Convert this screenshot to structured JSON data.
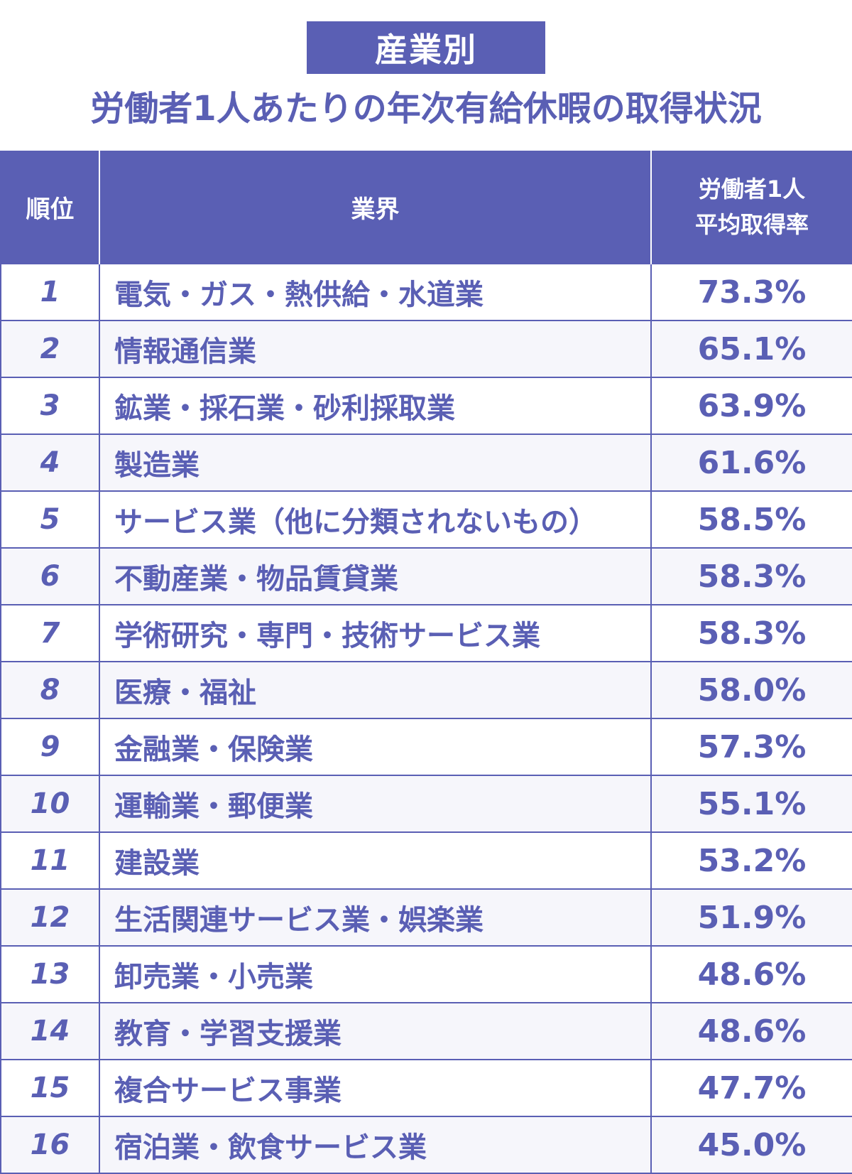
{
  "badge": "産業別",
  "title": "労働者1人あたりの年次有給休暇の取得状況",
  "header": {
    "rank": "順位",
    "industry": "業界",
    "rate_line1": "労働者1人",
    "rate_line2": "平均取得率"
  },
  "chart_data": {
    "type": "table",
    "title": "労働者1人あたりの年次有給休暇の取得状況",
    "columns": [
      "順位",
      "業界",
      "労働者1人 平均取得率"
    ],
    "rows": [
      {
        "rank": "1",
        "industry": "電気・ガス・熱供給・水道業",
        "rate": "73.3%",
        "value": 73.3
      },
      {
        "rank": "2",
        "industry": "情報通信業",
        "rate": "65.1%",
        "value": 65.1
      },
      {
        "rank": "3",
        "industry": "鉱業・採石業・砂利採取業",
        "rate": "63.9%",
        "value": 63.9
      },
      {
        "rank": "4",
        "industry": "製造業",
        "rate": "61.6%",
        "value": 61.6
      },
      {
        "rank": "5",
        "industry": "サービス業（他に分類されないもの）",
        "rate": "58.5%",
        "value": 58.5
      },
      {
        "rank": "6",
        "industry": "不動産業・物品賃貸業",
        "rate": "58.3%",
        "value": 58.3
      },
      {
        "rank": "7",
        "industry": "学術研究・専門・技術サービス業",
        "rate": "58.3%",
        "value": 58.3
      },
      {
        "rank": "8",
        "industry": "医療・福祉",
        "rate": "58.0%",
        "value": 58.0
      },
      {
        "rank": "9",
        "industry": "金融業・保険業",
        "rate": "57.3%",
        "value": 57.3
      },
      {
        "rank": "10",
        "industry": "運輸業・郵便業",
        "rate": "55.1%",
        "value": 55.1
      },
      {
        "rank": "11",
        "industry": "建設業",
        "rate": "53.2%",
        "value": 53.2
      },
      {
        "rank": "12",
        "industry": "生活関連サービス業・娯楽業",
        "rate": "51.9%",
        "value": 51.9
      },
      {
        "rank": "13",
        "industry": "卸売業・小売業",
        "rate": "48.6%",
        "value": 48.6
      },
      {
        "rank": "14",
        "industry": "教育・学習支援業",
        "rate": "48.6%",
        "value": 48.6
      },
      {
        "rank": "15",
        "industry": "複合サービス事業",
        "rate": "47.7%",
        "value": 47.7
      },
      {
        "rank": "16",
        "industry": "宿泊業・飲食サービス業",
        "rate": "45.0%",
        "value": 45.0
      }
    ]
  },
  "colors": {
    "accent": "#5a5fb4",
    "row_alt": "#f6f6fb",
    "header_text": "#ffffff"
  }
}
